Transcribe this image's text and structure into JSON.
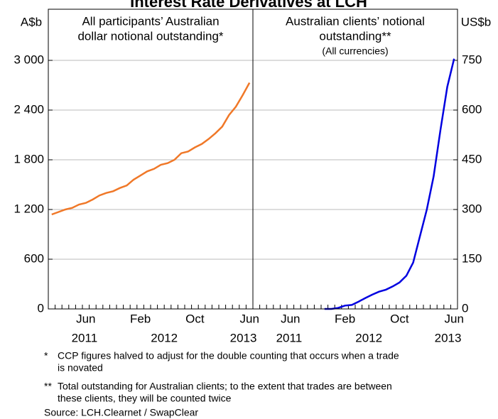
{
  "title": "Interest Rate Derivatives at LCH",
  "footnotes": [
    {
      "marker": "*",
      "lines": [
        "CCP figures halved to adjust for the double counting that occurs when a trade",
        "is novated"
      ]
    },
    {
      "marker": "**",
      "lines": [
        "Total outstanding for Australian clients; to the extent that trades are between",
        "these clients, they will be counted twice"
      ]
    }
  ],
  "source": "Source: LCH.Clearnet / SwapClear",
  "chart_data": [
    {
      "type": "line",
      "title_lines": [
        "All participants’ Australian",
        "dollar notional outstanding*"
      ],
      "y_label": "A$b",
      "categories": [
        null,
        null,
        null,
        null,
        null,
        "Jun",
        null,
        null,
        null,
        null,
        null,
        null,
        null,
        "Feb",
        null,
        null,
        null,
        null,
        null,
        null,
        null,
        "Oct",
        null,
        null,
        null,
        null,
        null,
        null,
        null,
        "Jun"
      ],
      "years": [
        "2011",
        "2012",
        "2013"
      ],
      "ylim": [
        0,
        3000
      ],
      "yticks": [
        0,
        600,
        {
          "value": 1200,
          "label": "1 200"
        },
        {
          "value": 1800,
          "label": "1 800"
        },
        {
          "value": 2400,
          "label": "2 400"
        },
        {
          "value": 3000,
          "label": "3 000"
        }
      ],
      "grid": true,
      "series": [
        {
          "color": "#f07828",
          "values": [
            1140,
            1170,
            1200,
            1220,
            1260,
            1280,
            1320,
            1370,
            1400,
            1420,
            1460,
            1490,
            1560,
            1610,
            1660,
            1690,
            1740,
            1760,
            1800,
            1880,
            1900,
            1950,
            1990,
            2050,
            2120,
            2200,
            2340,
            2440,
            2580,
            2730
          ]
        }
      ]
    },
    {
      "type": "line",
      "title_lines": [
        "Australian clients’ notional",
        "outstanding**",
        "(All currencies)"
      ],
      "y_label": "US$b",
      "categories": [
        null,
        null,
        null,
        null,
        null,
        "Jun",
        null,
        null,
        null,
        null,
        null,
        null,
        null,
        "Feb",
        null,
        null,
        null,
        null,
        null,
        null,
        null,
        "Oct",
        null,
        null,
        null,
        null,
        null,
        null,
        null,
        "Jun"
      ],
      "years": [
        "2011",
        "2012",
        "2013"
      ],
      "ylim": [
        0,
        750
      ],
      "yticks": [
        0,
        150,
        300,
        450,
        600,
        750
      ],
      "grid": true,
      "series": [
        {
          "color": "#0000e0",
          "values": [
            null,
            null,
            null,
            null,
            null,
            null,
            null,
            null,
            null,
            null,
            0,
            0,
            3,
            10,
            12,
            22,
            33,
            43,
            52,
            58,
            68,
            80,
            100,
            140,
            220,
            300,
            400,
            540,
            670,
            755
          ]
        }
      ]
    }
  ]
}
